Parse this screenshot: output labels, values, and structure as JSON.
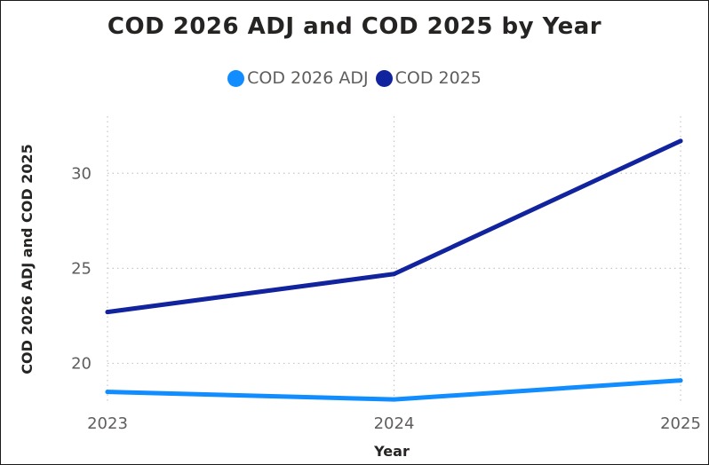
{
  "chart_data": {
    "type": "line",
    "title": "COD 2026 ADJ and COD 2025 by Year",
    "xlabel": "Year",
    "ylabel": "COD 2026 ADJ and COD 2025",
    "x": [
      "2023",
      "2024",
      "2025"
    ],
    "ylim": [
      17.5,
      33
    ],
    "yticks": [
      20,
      25,
      30
    ],
    "grid": true,
    "legend_position": "top-center",
    "series": [
      {
        "name": "COD 2026 ADJ",
        "color": "#118DFF",
        "values": [
          18.5,
          18.1,
          19.1
        ]
      },
      {
        "name": "COD 2025",
        "color": "#12239E",
        "values": [
          22.7,
          24.7,
          31.7
        ]
      }
    ]
  }
}
